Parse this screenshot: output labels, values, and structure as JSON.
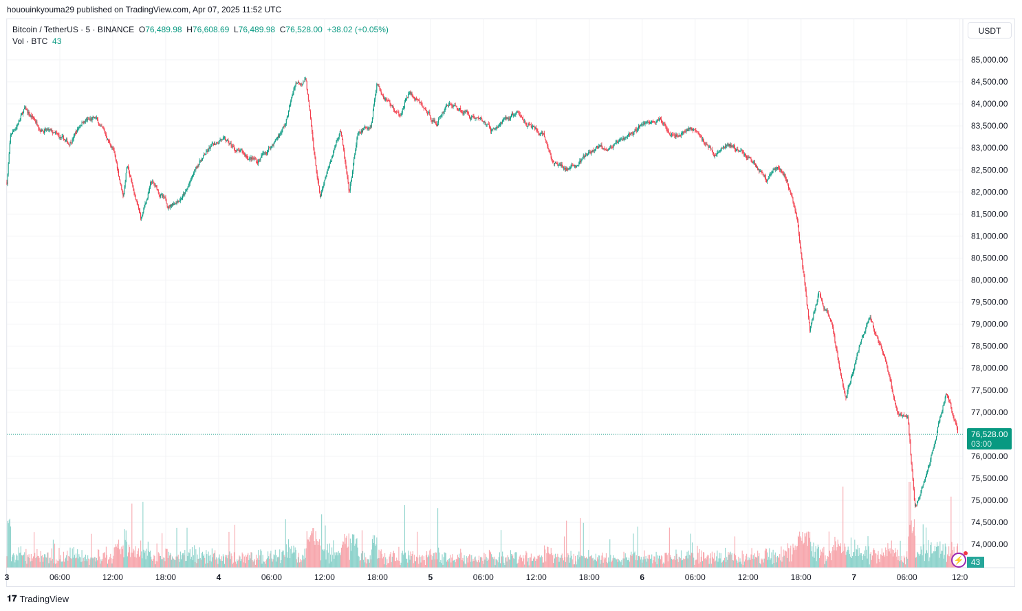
{
  "published": "hououinkyouma29 published on TradingView.com, Apr 07, 2025 11:52 UTC",
  "legend": {
    "symbol": "Bitcoin / TetherUS · 5 · BINANCE",
    "o_label": "O",
    "o": "76,489.98",
    "h_label": "H",
    "h": "76,608.69",
    "l_label": "L",
    "l": "76,489.98",
    "c_label": "C",
    "c": "76,528.00",
    "change": "+38.02 (+0.05%)",
    "vol_label": "Vol · BTC",
    "vol": "43"
  },
  "currency_button": "USDT",
  "price_label": {
    "price": "76,528.00",
    "countdown": "03:00"
  },
  "volume_label": "43",
  "brand": "TradingView",
  "colors": {
    "up": "#089981",
    "down": "#f23645",
    "vol_up": "#8fd3cc",
    "vol_down": "#f7a8ae"
  },
  "chart_data": {
    "type": "candlestick",
    "interval": "5m",
    "title": "Bitcoin / TetherUS · 5 · BINANCE",
    "ylim": [
      73600,
      85300
    ],
    "y_ticks": [
      "85,000.00",
      "84,500.00",
      "84,000.00",
      "83,500.00",
      "83,000.00",
      "82,500.00",
      "82,000.00",
      "81,500.00",
      "81,000.00",
      "80,500.00",
      "80,000.00",
      "79,500.00",
      "79,000.00",
      "78,500.00",
      "78,000.00",
      "77,500.00",
      "77,000.00",
      "76,500.00",
      "76,000.00",
      "75,500.00",
      "75,000.00",
      "74,500.00",
      "74,000.00"
    ],
    "x_ticks": [
      "3",
      "06:00",
      "12:00",
      "18:00",
      "4",
      "06:00",
      "12:00",
      "18:00",
      "5",
      "06:00",
      "12:00",
      "18:00",
      "6",
      "06:00",
      "12:00",
      "18:00",
      "7",
      "06:00",
      "12:0"
    ],
    "x_tick_hours": [
      0,
      6,
      12,
      18,
      24,
      30,
      36,
      42,
      48,
      54,
      60,
      66,
      72,
      78,
      84,
      90,
      96,
      102,
      108
    ],
    "last_price": 76528,
    "close_path_hours_since_apr3": [
      [
        0,
        82220
      ],
      [
        0.4,
        83240
      ],
      [
        2,
        83860
      ],
      [
        3.9,
        83470
      ],
      [
        7,
        83080
      ],
      [
        8.6,
        83630
      ],
      [
        10.1,
        83630
      ],
      [
        12,
        83000
      ],
      [
        13.2,
        81910
      ],
      [
        13.6,
        82610
      ],
      [
        15.2,
        81370
      ],
      [
        16.4,
        82220
      ],
      [
        18.3,
        81680
      ],
      [
        20.3,
        81990
      ],
      [
        21.8,
        82690
      ],
      [
        24.2,
        83240
      ],
      [
        26.1,
        82920
      ],
      [
        28.4,
        82690
      ],
      [
        30.4,
        83160
      ],
      [
        31.6,
        83550
      ],
      [
        32.7,
        84490
      ],
      [
        33.9,
        84560
      ],
      [
        34.7,
        83080
      ],
      [
        35.5,
        81830
      ],
      [
        36.6,
        82610
      ],
      [
        37.8,
        83470
      ],
      [
        38.8,
        81910
      ],
      [
        39.7,
        83240
      ],
      [
        41.3,
        83550
      ],
      [
        41.9,
        84490
      ],
      [
        44.4,
        83710
      ],
      [
        45.6,
        84250
      ],
      [
        48.7,
        83550
      ],
      [
        49.9,
        84020
      ],
      [
        53.8,
        83630
      ],
      [
        54.9,
        83390
      ],
      [
        57.7,
        83780
      ],
      [
        60.8,
        83240
      ],
      [
        62,
        82610
      ],
      [
        63.9,
        82530
      ],
      [
        67,
        83000
      ],
      [
        69.4,
        83080
      ],
      [
        72.1,
        83550
      ],
      [
        73.7,
        83630
      ],
      [
        76,
        83320
      ],
      [
        77.6,
        83470
      ],
      [
        80.3,
        82850
      ],
      [
        81.8,
        83080
      ],
      [
        84.2,
        82770
      ],
      [
        86.1,
        82300
      ],
      [
        87.3,
        82610
      ],
      [
        88.4,
        82300
      ],
      [
        89.6,
        81370
      ],
      [
        90.4,
        79960
      ],
      [
        91,
        78870
      ],
      [
        92,
        79650
      ],
      [
        93.5,
        79020
      ],
      [
        95.1,
        77310
      ],
      [
        96.2,
        78250
      ],
      [
        97.8,
        79180
      ],
      [
        99.8,
        77940
      ],
      [
        100.9,
        77000
      ],
      [
        102.1,
        76840
      ],
      [
        102.9,
        74810
      ],
      [
        104,
        75440
      ],
      [
        105.2,
        76370
      ],
      [
        106.4,
        77470
      ],
      [
        107.8,
        76528
      ]
    ]
  }
}
